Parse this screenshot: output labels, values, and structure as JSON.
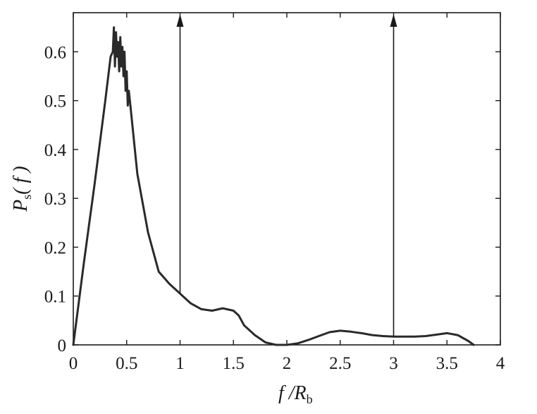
{
  "chart_data": {
    "type": "line",
    "xlim": [
      0,
      4
    ],
    "ylim": [
      0,
      0.68
    ],
    "x_ticks": [
      0,
      0.5,
      1,
      1.5,
      2,
      2.5,
      3,
      3.5,
      4
    ],
    "x_tick_labels": [
      "0",
      "0.5",
      "1",
      "1.5",
      "2",
      "2.5",
      "3",
      "3.5",
      "4"
    ],
    "y_ticks": [
      0,
      0.1,
      0.2,
      0.3,
      0.4,
      0.5,
      0.6
    ],
    "y_tick_labels": [
      "0",
      "0.1",
      "0.2",
      "0.3",
      "0.4",
      "0.5",
      "0.6"
    ],
    "xlabel": {
      "main": "f /R",
      "sub": "b"
    },
    "ylabel": {
      "main": "P",
      "sub": "s",
      "tail": "( f )"
    },
    "grid": false,
    "series": [
      {
        "x": [
          0,
          0.1,
          0.2,
          0.3,
          0.35,
          0.37,
          0.38,
          0.39,
          0.4,
          0.41,
          0.42,
          0.43,
          0.44,
          0.45,
          0.46,
          0.47,
          0.48,
          0.49,
          0.5,
          0.51,
          0.52,
          0.53,
          0.6,
          0.7,
          0.8,
          0.9,
          1.0,
          1.1,
          1.2,
          1.3,
          1.4,
          1.5,
          1.55,
          1.6,
          1.7,
          1.8,
          1.9,
          2.0,
          2.1,
          2.2,
          2.3,
          2.4,
          2.5,
          2.6,
          2.7,
          2.8,
          2.9,
          3.0,
          3.1,
          3.2,
          3.3,
          3.4,
          3.5,
          3.6,
          3.7,
          3.75
        ],
        "y": [
          0,
          0.17,
          0.33,
          0.5,
          0.59,
          0.6,
          0.65,
          0.57,
          0.64,
          0.59,
          0.62,
          0.56,
          0.63,
          0.57,
          0.61,
          0.55,
          0.6,
          0.52,
          0.56,
          0.49,
          0.52,
          0.5,
          0.35,
          0.23,
          0.15,
          0.125,
          0.105,
          0.085,
          0.073,
          0.07,
          0.075,
          0.07,
          0.06,
          0.04,
          0.02,
          0.005,
          0.0,
          0.0,
          0.003,
          0.01,
          0.018,
          0.026,
          0.029,
          0.027,
          0.024,
          0.02,
          0.018,
          0.017,
          0.017,
          0.017,
          0.018,
          0.021,
          0.024,
          0.02,
          0.008,
          0.0
        ]
      }
    ],
    "impulses": [
      {
        "x": 1,
        "y_from": 0.105
      },
      {
        "x": 3,
        "y_from": 0.017
      }
    ]
  }
}
